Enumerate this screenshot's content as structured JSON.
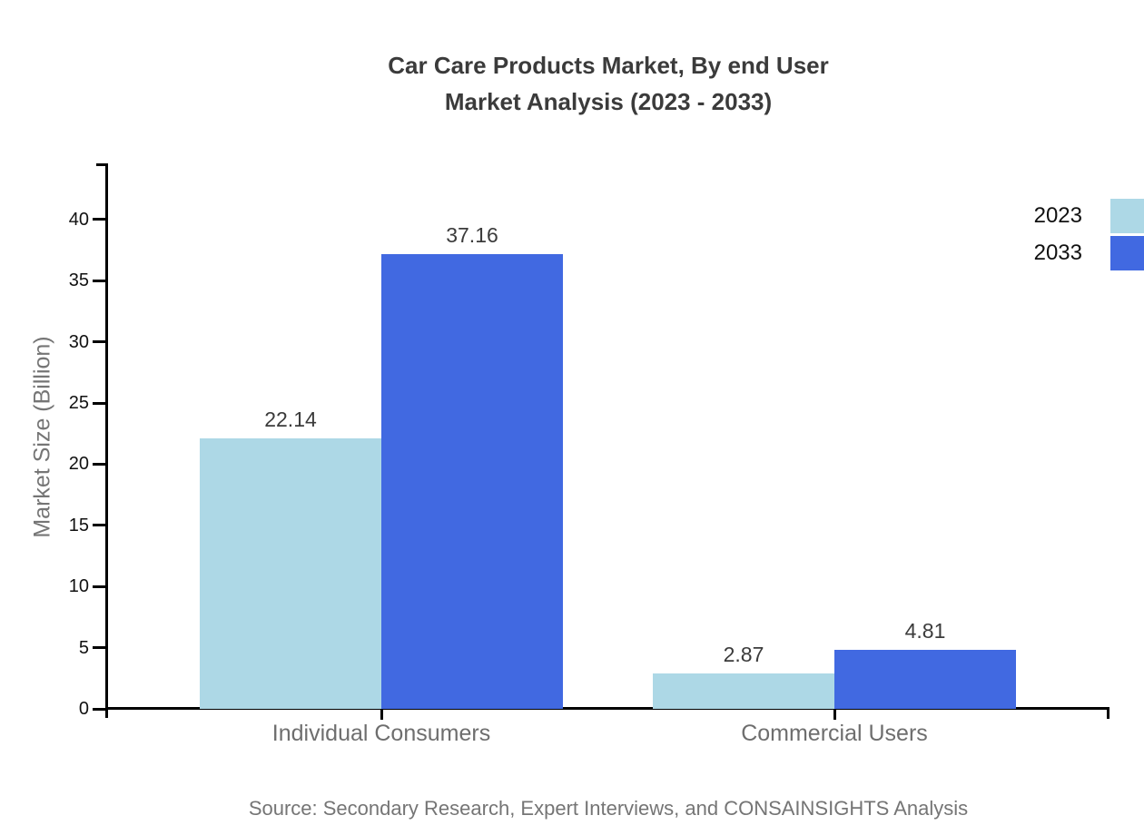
{
  "title": {
    "line1": "Car Care Products Market, By end User",
    "line2": "Market Analysis (2023 - 2033)"
  },
  "source": "Source: Secondary Research, Expert Interviews, and CONSAINSIGHTS Analysis",
  "chart_data": {
    "type": "bar",
    "title": "Car Care Products Market, By end User Market Analysis (2023 - 2033)",
    "categories": [
      "Individual Consumers",
      "Commercial Users"
    ],
    "series": [
      {
        "name": "2023",
        "color": "#ADD8E6",
        "values": [
          22.14,
          2.87
        ]
      },
      {
        "name": "2033",
        "color": "#4169E1",
        "values": [
          37.16,
          4.81
        ]
      }
    ],
    "value_labels": [
      "22.14",
      "37.16",
      "2.87",
      "4.81"
    ],
    "xlabel": "",
    "ylabel": "Market Size (Billion)",
    "ylim": [
      0,
      44.6
    ],
    "yticks": [
      0,
      5,
      10,
      15,
      20,
      25,
      30,
      35,
      40
    ],
    "grid": false,
    "legend_position": "top-right",
    "bar_value_labels_shown": true
  },
  "colors": {
    "bar_2023": "#ADD8E6",
    "bar_2033": "#4169E1",
    "title_text": "#3b3b3b",
    "axis_line": "#000000",
    "muted_text": "#757575"
  }
}
